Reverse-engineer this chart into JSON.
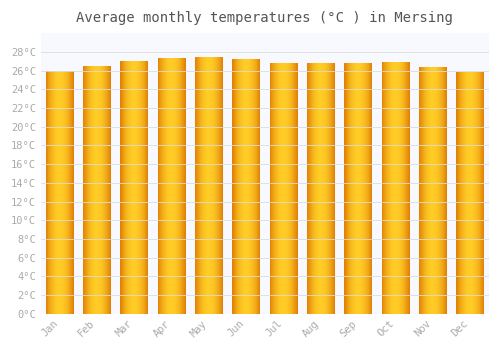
{
  "title": "Average monthly temperatures (°C ) in Mersing",
  "months": [
    "Jan",
    "Feb",
    "Mar",
    "Apr",
    "May",
    "Jun",
    "Jul",
    "Aug",
    "Sep",
    "Oct",
    "Nov",
    "Dec"
  ],
  "temperatures": [
    26.0,
    26.5,
    27.0,
    27.3,
    27.5,
    27.2,
    26.8,
    26.8,
    26.8,
    26.9,
    26.4,
    25.9
  ],
  "bar_color_center": "#FFB300",
  "bar_color_edge": "#E07800",
  "background_color": "#FFFFFF",
  "plot_bg_color": "#F8F8FF",
  "grid_color": "#DCDCDC",
  "ylim": [
    0,
    30
  ],
  "yticks": [
    0,
    2,
    4,
    6,
    8,
    10,
    12,
    14,
    16,
    18,
    20,
    22,
    24,
    26,
    28
  ],
  "tick_label_color": "#AAAAAA",
  "title_color": "#555555",
  "title_fontsize": 10,
  "bar_width": 0.75
}
